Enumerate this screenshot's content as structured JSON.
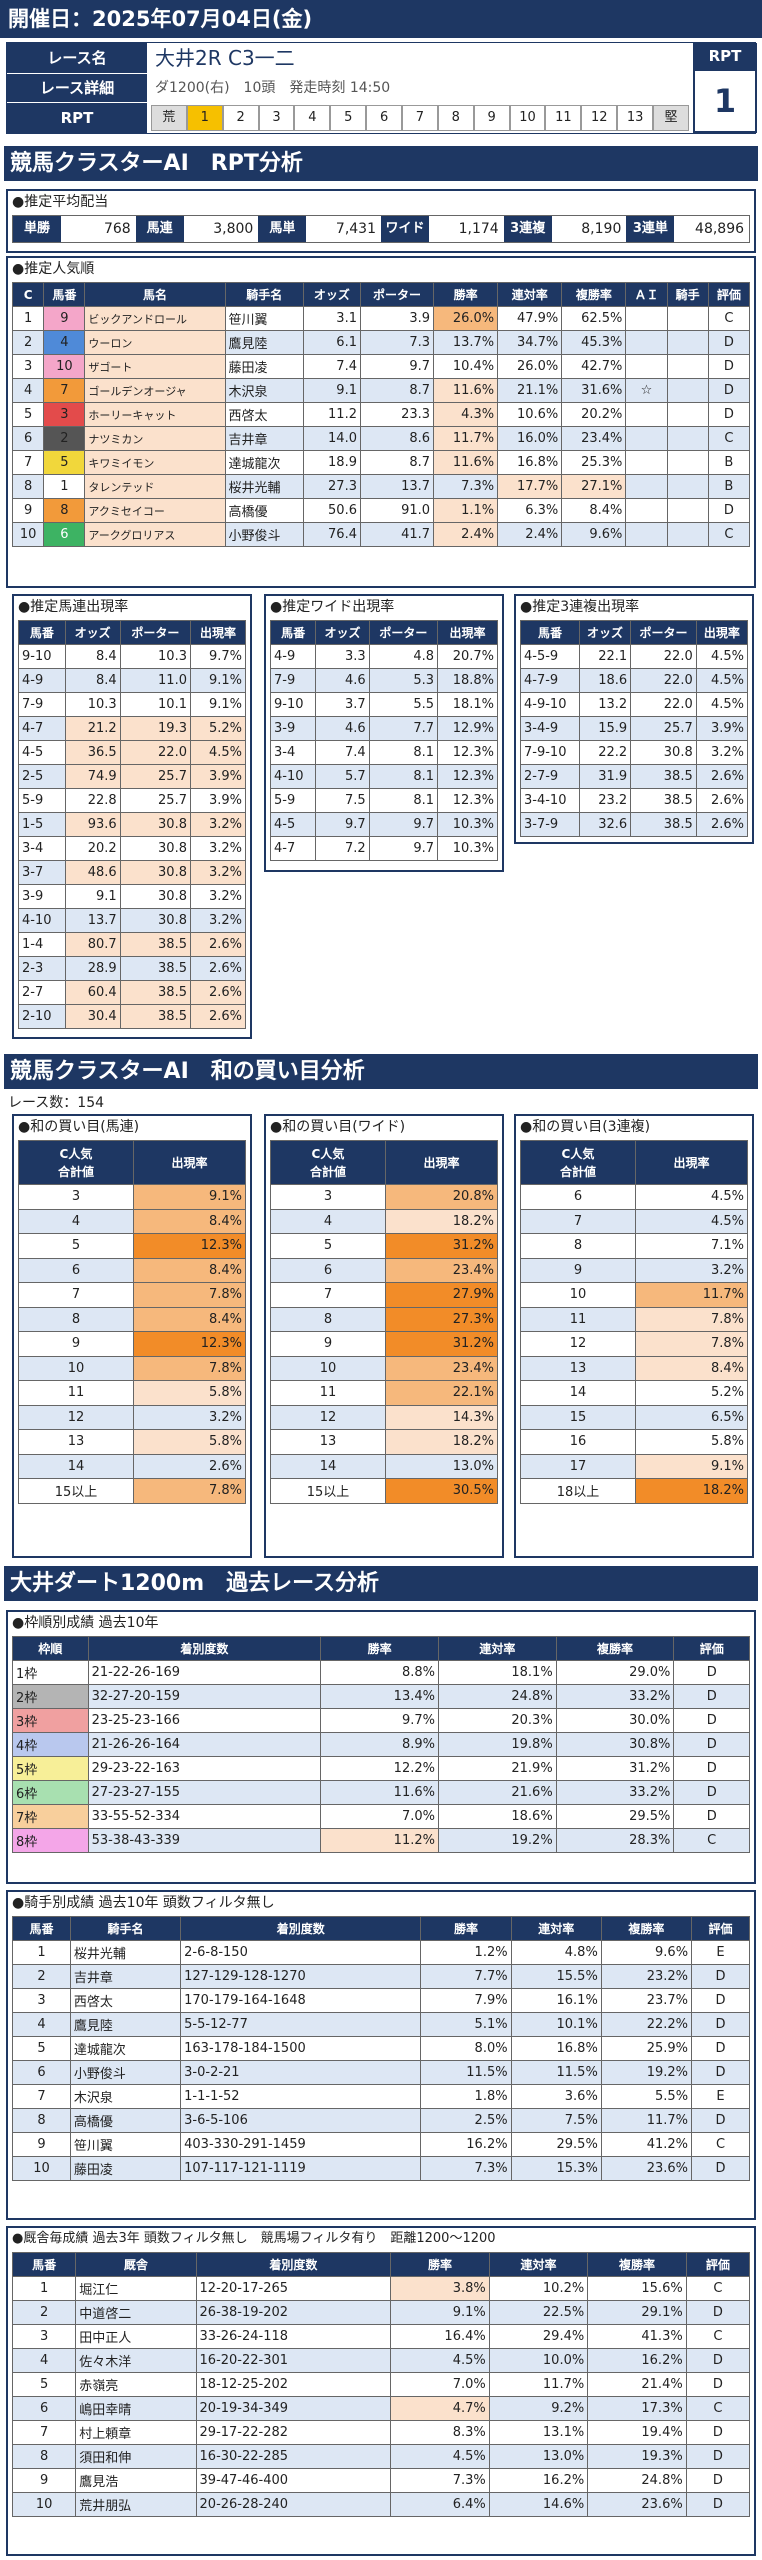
{
  "header": {
    "date_label": "開催日：2025年07月04日(金)"
  },
  "race": {
    "name_label": "レース名",
    "name": "大井2R C3一二",
    "detail_label": "レース詳細",
    "detail": "ダ1200(右)　10頭　発走時刻 14:50",
    "rpt_label": "RPT",
    "rpt_scale": [
      "荒",
      "1",
      "2",
      "3",
      "4",
      "5",
      "6",
      "7",
      "8",
      "9",
      "10",
      "11",
      "12",
      "13",
      "堅"
    ],
    "rpt_box_label": "RPT",
    "rpt_value": "1"
  },
  "sec1": {
    "title": "競馬クラスターAI　RPT分析"
  },
  "payout": {
    "title": "●推定平均配当",
    "items": [
      {
        "label": "単勝",
        "value": "768"
      },
      {
        "label": "馬連",
        "value": "3,800"
      },
      {
        "label": "馬単",
        "value": "7,431"
      },
      {
        "label": "ワイド",
        "value": "1,174"
      },
      {
        "label": "3連複",
        "value": "8,190"
      },
      {
        "label": "3連単",
        "value": "48,896"
      }
    ]
  },
  "popularity": {
    "title": "●推定人気順",
    "headers": [
      "C",
      "馬番",
      "馬名",
      "騎手名",
      "オッズ",
      "ポーター",
      "勝率",
      "連対率",
      "複勝率",
      "ＡＩ",
      "騎手",
      "評価"
    ],
    "rows": [
      [
        "1",
        "9",
        "ビックアンドロール",
        "笹川翼",
        "3.1",
        "3.9",
        "26.0%",
        "47.9%",
        "62.5%",
        "",
        "",
        "C"
      ],
      [
        "2",
        "4",
        "ウーロン",
        "鷹見陸",
        "6.1",
        "7.3",
        "13.7%",
        "34.7%",
        "45.3%",
        "",
        "",
        "D"
      ],
      [
        "3",
        "10",
        "ザゴート",
        "藤田凌",
        "7.4",
        "9.7",
        "10.4%",
        "26.0%",
        "42.7%",
        "",
        "",
        "D"
      ],
      [
        "4",
        "7",
        "ゴールデンオージャ",
        "木沢泉",
        "9.1",
        "8.7",
        "11.6%",
        "21.1%",
        "31.6%",
        "☆",
        "",
        "D"
      ],
      [
        "5",
        "3",
        "ホーリーキャット",
        "西啓太",
        "11.2",
        "23.3",
        "4.3%",
        "10.6%",
        "20.2%",
        "",
        "",
        "D"
      ],
      [
        "6",
        "2",
        "ナツミカン",
        "吉井章",
        "14.0",
        "8.6",
        "11.7%",
        "16.0%",
        "23.4%",
        "",
        "",
        "C"
      ],
      [
        "7",
        "5",
        "キワミイモン",
        "達城龍次",
        "18.9",
        "8.7",
        "11.6%",
        "16.8%",
        "25.3%",
        "",
        "",
        "B"
      ],
      [
        "8",
        "1",
        "タレンテッド",
        "桜井光輔",
        "27.3",
        "13.7",
        "7.3%",
        "17.7%",
        "27.1%",
        "",
        "",
        "B"
      ],
      [
        "9",
        "8",
        "アクミセイコー",
        "高橋優",
        "50.6",
        "91.0",
        "1.1%",
        "6.3%",
        "8.4%",
        "",
        "",
        "D"
      ],
      [
        "10",
        "6",
        "アークグロリアス",
        "小野俊斗",
        "76.4",
        "41.7",
        "2.4%",
        "2.4%",
        "9.6%",
        "",
        "",
        "C"
      ]
    ]
  },
  "umaren": {
    "title": "●推定馬連出現率",
    "headers": [
      "馬番",
      "オッズ",
      "ポーター",
      "出現率"
    ],
    "rows": [
      [
        "9-10",
        "8.4",
        "10.3",
        "9.7%"
      ],
      [
        "4-9",
        "8.4",
        "11.0",
        "9.1%"
      ],
      [
        "7-9",
        "10.3",
        "10.1",
        "9.1%"
      ],
      [
        "4-7",
        "21.2",
        "19.3",
        "5.2%"
      ],
      [
        "4-5",
        "36.5",
        "22.0",
        "4.5%"
      ],
      [
        "2-5",
        "74.9",
        "25.7",
        "3.9%"
      ],
      [
        "5-9",
        "22.8",
        "25.7",
        "3.9%"
      ],
      [
        "1-5",
        "93.6",
        "30.8",
        "3.2%"
      ],
      [
        "3-4",
        "20.2",
        "30.8",
        "3.2%"
      ],
      [
        "3-7",
        "48.6",
        "30.8",
        "3.2%"
      ],
      [
        "3-9",
        "9.1",
        "30.8",
        "3.2%"
      ],
      [
        "4-10",
        "13.7",
        "30.8",
        "3.2%"
      ],
      [
        "1-4",
        "80.7",
        "38.5",
        "2.6%"
      ],
      [
        "2-3",
        "28.9",
        "38.5",
        "2.6%"
      ],
      [
        "2-7",
        "60.4",
        "38.5",
        "2.6%"
      ],
      [
        "2-10",
        "30.4",
        "38.5",
        "2.6%"
      ]
    ]
  },
  "wide": {
    "title": "●推定ワイド出現率",
    "headers": [
      "馬番",
      "オッズ",
      "ポーター",
      "出現率"
    ],
    "rows": [
      [
        "4-9",
        "3.3",
        "4.8",
        "20.7%"
      ],
      [
        "7-9",
        "4.6",
        "5.3",
        "18.8%"
      ],
      [
        "9-10",
        "3.7",
        "5.5",
        "18.1%"
      ],
      [
        "3-9",
        "4.6",
        "7.7",
        "12.9%"
      ],
      [
        "3-4",
        "7.4",
        "8.1",
        "12.3%"
      ],
      [
        "4-10",
        "5.7",
        "8.1",
        "12.3%"
      ],
      [
        "5-9",
        "7.5",
        "8.1",
        "12.3%"
      ],
      [
        "4-5",
        "9.7",
        "9.7",
        "10.3%"
      ],
      [
        "4-7",
        "7.2",
        "9.7",
        "10.3%"
      ]
    ]
  },
  "sanrenpuku": {
    "title": "●推定3連複出現率",
    "headers": [
      "馬番",
      "オッズ",
      "ポーター",
      "出現率"
    ],
    "rows": [
      [
        "4-5-9",
        "22.1",
        "22.0",
        "4.5%"
      ],
      [
        "4-7-9",
        "18.6",
        "22.0",
        "4.5%"
      ],
      [
        "4-9-10",
        "13.2",
        "22.0",
        "4.5%"
      ],
      [
        "3-4-9",
        "15.9",
        "25.7",
        "3.9%"
      ],
      [
        "7-9-10",
        "22.2",
        "30.8",
        "3.2%"
      ],
      [
        "2-7-9",
        "31.9",
        "38.5",
        "2.6%"
      ],
      [
        "3-4-10",
        "23.2",
        "38.5",
        "2.6%"
      ],
      [
        "3-7-9",
        "32.6",
        "38.5",
        "2.6%"
      ]
    ]
  },
  "sec2": {
    "title": "競馬クラスターAI　和の買い目分析",
    "race_count": "レース数：154"
  },
  "wa_umaren": {
    "title": "●和の買い目(馬連)",
    "h1": "C人気\n合計値",
    "h2": "出現率",
    "rows": [
      [
        "3",
        "9.1%"
      ],
      [
        "4",
        "8.4%"
      ],
      [
        "5",
        "12.3%"
      ],
      [
        "6",
        "8.4%"
      ],
      [
        "7",
        "7.8%"
      ],
      [
        "8",
        "8.4%"
      ],
      [
        "9",
        "12.3%"
      ],
      [
        "10",
        "7.8%"
      ],
      [
        "11",
        "5.8%"
      ],
      [
        "12",
        "3.2%"
      ],
      [
        "13",
        "5.8%"
      ],
      [
        "14",
        "2.6%"
      ],
      [
        "15以上",
        "7.8%"
      ]
    ]
  },
  "wa_wide": {
    "title": "●和の買い目(ワイド)",
    "h1": "C人気\n合計値",
    "h2": "出現率",
    "rows": [
      [
        "3",
        "20.8%"
      ],
      [
        "4",
        "18.2%"
      ],
      [
        "5",
        "31.2%"
      ],
      [
        "6",
        "23.4%"
      ],
      [
        "7",
        "27.9%"
      ],
      [
        "8",
        "27.3%"
      ],
      [
        "9",
        "31.2%"
      ],
      [
        "10",
        "23.4%"
      ],
      [
        "11",
        "22.1%"
      ],
      [
        "12",
        "14.3%"
      ],
      [
        "13",
        "18.2%"
      ],
      [
        "14",
        "13.0%"
      ],
      [
        "15以上",
        "30.5%"
      ]
    ]
  },
  "wa_sanren": {
    "title": "●和の買い目(3連複)",
    "h1": "C人気\n合計値",
    "h2": "出現率",
    "rows": [
      [
        "6",
        "4.5%"
      ],
      [
        "7",
        "4.5%"
      ],
      [
        "8",
        "7.1%"
      ],
      [
        "9",
        "3.2%"
      ],
      [
        "10",
        "11.7%"
      ],
      [
        "11",
        "7.8%"
      ],
      [
        "12",
        "7.8%"
      ],
      [
        "13",
        "8.4%"
      ],
      [
        "14",
        "5.2%"
      ],
      [
        "15",
        "6.5%"
      ],
      [
        "16",
        "5.8%"
      ],
      [
        "17",
        "9.1%"
      ],
      [
        "18以上",
        "18.2%"
      ]
    ]
  },
  "sec3": {
    "title": "大井ダート1200m　過去レース分析"
  },
  "waku": {
    "title": "●枠順別成績 過去10年",
    "headers": [
      "枠順",
      "着別度数",
      "勝率",
      "連対率",
      "複勝率",
      "評価"
    ],
    "rows": [
      [
        "1枠",
        "21-22-26-169",
        "8.8%",
        "18.1%",
        "29.0%",
        "D"
      ],
      [
        "2枠",
        "32-27-20-159",
        "13.4%",
        "24.8%",
        "33.2%",
        "D"
      ],
      [
        "3枠",
        "23-25-23-166",
        "9.7%",
        "20.3%",
        "30.0%",
        "D"
      ],
      [
        "4枠",
        "21-26-26-164",
        "8.9%",
        "19.8%",
        "30.8%",
        "D"
      ],
      [
        "5枠",
        "29-23-22-163",
        "12.2%",
        "21.9%",
        "31.2%",
        "D"
      ],
      [
        "6枠",
        "27-23-27-155",
        "11.6%",
        "21.6%",
        "33.2%",
        "D"
      ],
      [
        "7枠",
        "33-55-52-334",
        "7.0%",
        "18.6%",
        "29.5%",
        "D"
      ],
      [
        "8枠",
        "53-38-43-339",
        "11.2%",
        "19.2%",
        "28.3%",
        "C"
      ]
    ]
  },
  "jockey": {
    "title": "●騎手別成績 過去10年 頭数フィルタ無し",
    "headers": [
      "馬番",
      "騎手名",
      "着別度数",
      "勝率",
      "連対率",
      "複勝率",
      "評価"
    ],
    "rows": [
      [
        "1",
        "桜井光輔",
        "2-6-8-150",
        "1.2%",
        "4.8%",
        "9.6%",
        "E"
      ],
      [
        "2",
        "吉井章",
        "127-129-128-1270",
        "7.7%",
        "15.5%",
        "23.2%",
        "D"
      ],
      [
        "3",
        "西啓太",
        "170-179-164-1648",
        "7.9%",
        "16.1%",
        "23.7%",
        "D"
      ],
      [
        "4",
        "鷹見陸",
        "5-5-12-77",
        "5.1%",
        "10.1%",
        "22.2%",
        "D"
      ],
      [
        "5",
        "達城龍次",
        "163-178-184-1500",
        "8.0%",
        "16.8%",
        "25.9%",
        "D"
      ],
      [
        "6",
        "小野俊斗",
        "3-0-2-21",
        "11.5%",
        "11.5%",
        "19.2%",
        "D"
      ],
      [
        "7",
        "木沢泉",
        "1-1-1-52",
        "1.8%",
        "3.6%",
        "5.5%",
        "E"
      ],
      [
        "8",
        "高橋優",
        "3-6-5-106",
        "2.5%",
        "7.5%",
        "11.7%",
        "D"
      ],
      [
        "9",
        "笹川翼",
        "403-330-291-1459",
        "16.2%",
        "29.5%",
        "41.2%",
        "C"
      ],
      [
        "10",
        "藤田凌",
        "107-117-121-1119",
        "7.3%",
        "15.3%",
        "23.6%",
        "D"
      ]
    ]
  },
  "stable": {
    "title": "●厩舎毎成績 過去3年 頭数フィルタ無し　競馬場フィルタ有り　距離1200～1200",
    "headers": [
      "馬番",
      "厩舎",
      "着別度数",
      "勝率",
      "連対率",
      "複勝率",
      "評価"
    ],
    "rows": [
      [
        "1",
        "堀江仁",
        "12-20-17-265",
        "3.8%",
        "10.2%",
        "15.6%",
        "C"
      ],
      [
        "2",
        "中道啓二",
        "26-38-19-202",
        "9.1%",
        "22.5%",
        "29.1%",
        "D"
      ],
      [
        "3",
        "田中正人",
        "33-26-24-118",
        "16.4%",
        "29.4%",
        "41.3%",
        "C"
      ],
      [
        "4",
        "佐々木洋",
        "16-20-22-301",
        "4.5%",
        "10.0%",
        "16.2%",
        "D"
      ],
      [
        "5",
        "赤嶺亮",
        "18-12-25-202",
        "7.0%",
        "11.7%",
        "21.4%",
        "D"
      ],
      [
        "6",
        "嶋田幸晴",
        "20-19-34-349",
        "4.7%",
        "9.2%",
        "17.3%",
        "C"
      ],
      [
        "7",
        "村上頼章",
        "29-17-22-282",
        "8.3%",
        "13.1%",
        "19.4%",
        "D"
      ],
      [
        "8",
        "須田和伸",
        "16-30-22-285",
        "4.5%",
        "13.0%",
        "19.3%",
        "D"
      ],
      [
        "9",
        "鷹見浩",
        "39-47-46-400",
        "7.3%",
        "16.2%",
        "24.8%",
        "D"
      ],
      [
        "10",
        "荒井朋弘",
        "20-26-28-240",
        "6.4%",
        "14.6%",
        "23.6%",
        "D"
      ]
    ]
  }
}
